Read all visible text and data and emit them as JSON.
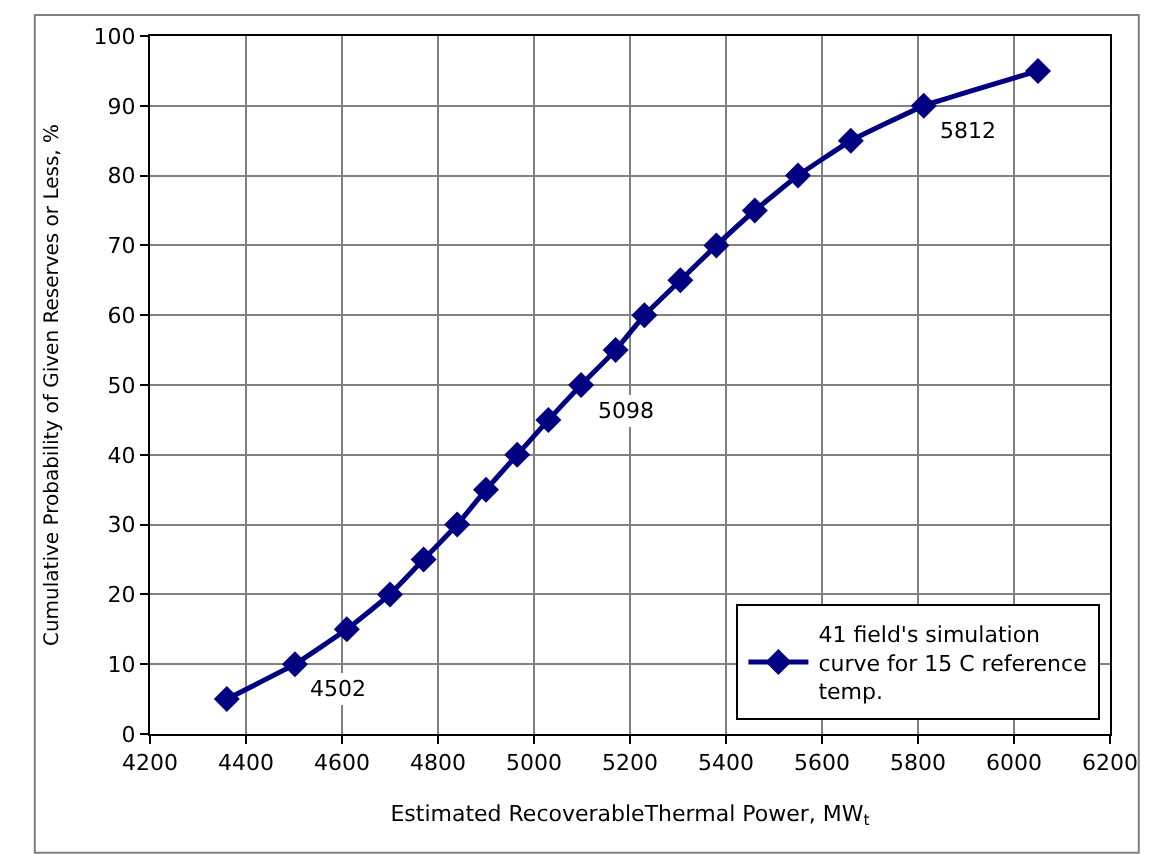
{
  "chart_data": {
    "type": "line",
    "xlabel": "Estimated RecoverableThermal Power, MW$_{t}$",
    "ylabel": "Cumulative Probability of Given Reserves or Less, %",
    "x": [
      4360,
      4502,
      4610,
      4700,
      4770,
      4840,
      4900,
      4965,
      5030,
      5098,
      5170,
      5230,
      5305,
      5380,
      5460,
      5550,
      5660,
      5812,
      6050
    ],
    "series": [
      {
        "name": "41 field's simulation curve for 15 C reference temp.",
        "color": "#000080",
        "values": [
          5,
          10,
          15,
          20,
          25,
          30,
          35,
          40,
          45,
          50,
          55,
          60,
          65,
          70,
          75,
          80,
          85,
          90,
          95
        ]
      }
    ],
    "xlim": [
      4200,
      6200
    ],
    "xticks": [
      4200,
      4400,
      4600,
      4800,
      5000,
      5200,
      5400,
      5600,
      5800,
      6000,
      6200
    ],
    "ylim": [
      0,
      100
    ],
    "yticks": [
      0,
      10,
      20,
      30,
      40,
      50,
      60,
      70,
      80,
      90,
      100
    ],
    "grid": true,
    "legend": "bottom right",
    "marker": "diamond",
    "line_style": "solid",
    "annotations": [
      {
        "text": "4502",
        "x": 4502,
        "y": 10
      },
      {
        "text": "5098",
        "x": 5098,
        "y": 50
      },
      {
        "text": "5812",
        "x": 5812,
        "y": 90
      }
    ]
  }
}
